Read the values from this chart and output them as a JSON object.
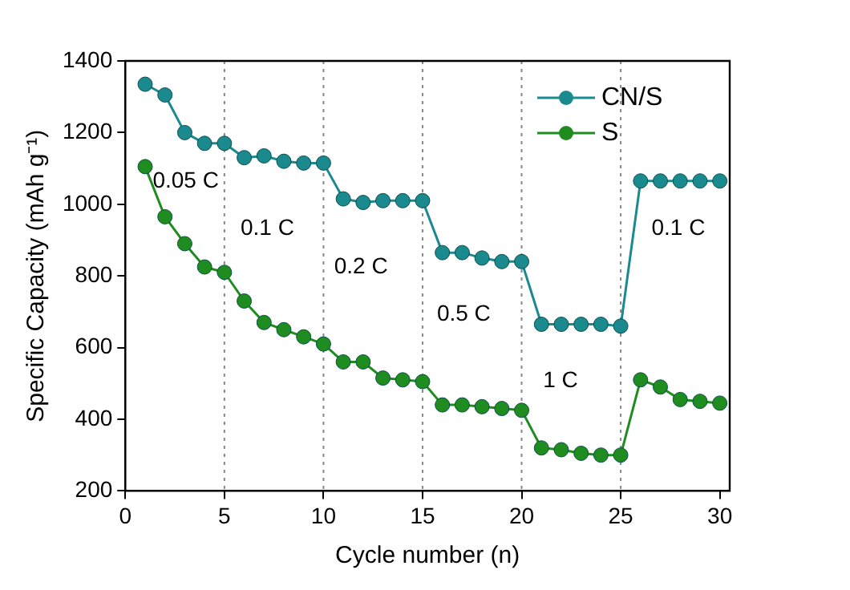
{
  "chart_data": {
    "type": "line",
    "xlabel": "Cycle number (n)",
    "ylabel": "Specific Capacity (mAh g⁻¹)",
    "x": [
      1,
      2,
      3,
      4,
      5,
      6,
      7,
      8,
      9,
      10,
      11,
      12,
      13,
      14,
      15,
      16,
      17,
      18,
      19,
      20,
      21,
      22,
      23,
      24,
      25,
      26,
      27,
      28,
      29,
      30
    ],
    "series": [
      {
        "name": "CN/S",
        "color": "#1a8a8f",
        "values": [
          1335,
          1305,
          1200,
          1170,
          1170,
          1130,
          1135,
          1120,
          1115,
          1115,
          1015,
          1005,
          1010,
          1010,
          1010,
          865,
          865,
          850,
          840,
          840,
          665,
          665,
          665,
          665,
          660,
          1065,
          1065,
          1065,
          1065,
          1065
        ]
      },
      {
        "name": "S",
        "color": "#1e8c1e",
        "values": [
          1105,
          965,
          890,
          825,
          810,
          730,
          670,
          650,
          630,
          610,
          560,
          560,
          515,
          510,
          505,
          440,
          440,
          435,
          430,
          425,
          320,
          315,
          305,
          300,
          300,
          510,
          490,
          455,
          450,
          445
        ]
      }
    ],
    "xlim": [
      0,
      30.5
    ],
    "xticks": [
      0,
      5,
      10,
      15,
      20,
      25,
      30
    ],
    "ylim": [
      200,
      1400
    ],
    "yticks": [
      200,
      400,
      600,
      800,
      1000,
      1200,
      1400
    ],
    "ref_lines": [
      {
        "axis": "x",
        "value": 5,
        "color": "#888888",
        "line_style": "dotted"
      },
      {
        "axis": "x",
        "value": 10,
        "color": "#888888",
        "line_style": "dotted"
      },
      {
        "axis": "x",
        "value": 15,
        "color": "#888888",
        "line_style": "dotted"
      },
      {
        "axis": "x",
        "value": 20,
        "color": "#888888",
        "line_style": "dotted"
      },
      {
        "axis": "x",
        "value": 25,
        "color": "#888888",
        "line_style": "dotted"
      }
    ],
    "annotations": [
      "0.05 C",
      "0.1 C",
      "0.2 C",
      "0.5 C",
      "1 C",
      "0.1 C"
    ],
    "legend": "top right",
    "marker": "circle",
    "line_style": "solid",
    "grid": false
  }
}
